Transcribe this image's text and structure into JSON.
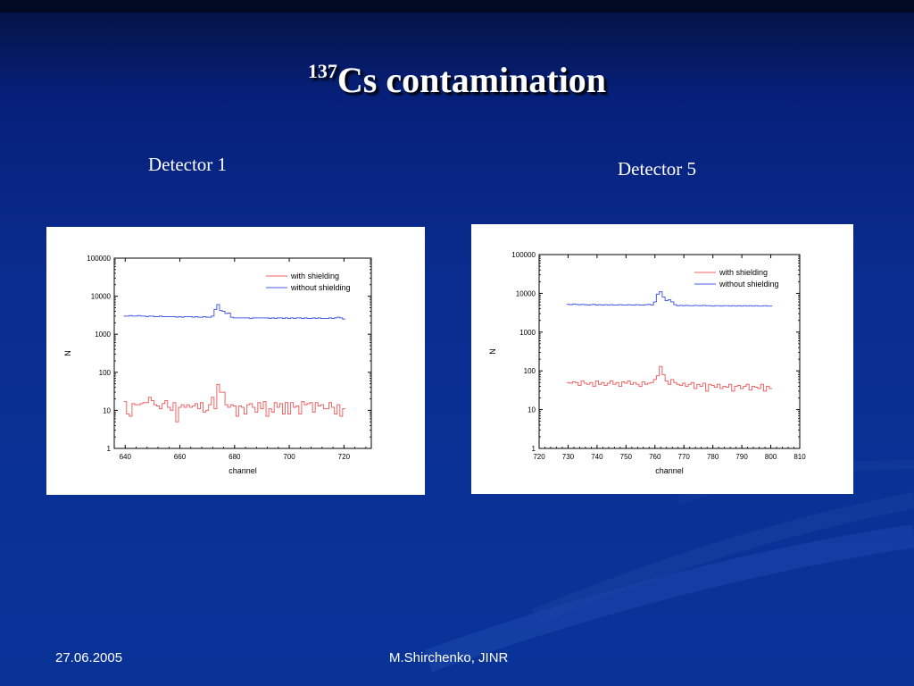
{
  "slide": {
    "title_sup": "137",
    "title_main": "Cs contamination",
    "footer_date": "27.06.2005",
    "footer_author": "M.Shirchenko, JINR"
  },
  "detectors": [
    {
      "label": "Detector 1"
    },
    {
      "label": "Detector 5"
    }
  ],
  "chart_data": [
    {
      "type": "line",
      "step": true,
      "xlabel": "channel",
      "ylabel": "N",
      "xlim": [
        636,
        730
      ],
      "ylim": [
        1,
        100000
      ],
      "y_scale": "log",
      "x_ticks": [
        640,
        660,
        680,
        700,
        720
      ],
      "y_ticks": [
        1,
        10,
        100,
        1000,
        10000,
        100000
      ],
      "y_tick_labels": [
        "1",
        "10",
        "100",
        "1000",
        "10000",
        "100000"
      ],
      "legend_position": "top-right",
      "x": [
        640,
        641,
        642,
        643,
        644,
        645,
        646,
        647,
        648,
        649,
        650,
        651,
        652,
        653,
        654,
        655,
        656,
        657,
        658,
        659,
        660,
        661,
        662,
        663,
        664,
        665,
        666,
        667,
        668,
        669,
        670,
        671,
        672,
        673,
        674,
        675,
        676,
        677,
        678,
        679,
        680,
        681,
        682,
        683,
        684,
        685,
        686,
        687,
        688,
        689,
        690,
        691,
        692,
        693,
        694,
        695,
        696,
        697,
        698,
        699,
        700,
        701,
        702,
        703,
        704,
        705,
        706,
        707,
        708,
        709,
        710,
        711,
        712,
        713,
        714,
        715,
        716,
        717,
        718,
        719,
        720
      ],
      "series": [
        {
          "name": "with shielding",
          "color": "#ee6666",
          "values": [
            17,
            8,
            7,
            15,
            14,
            14,
            15,
            16,
            16,
            22,
            18,
            14,
            13,
            11,
            15,
            18,
            12,
            10,
            16,
            5,
            12,
            14,
            12,
            14,
            12,
            13,
            15,
            11,
            16,
            9,
            10,
            14,
            22,
            11,
            48,
            30,
            30,
            14,
            12,
            14,
            13,
            7,
            13,
            12,
            8,
            14,
            15,
            12,
            9,
            16,
            11,
            17,
            7,
            11,
            9,
            16,
            12,
            15,
            8,
            16,
            8,
            16,
            12,
            13,
            8,
            17,
            14,
            15,
            16,
            9,
            16,
            13,
            14,
            11,
            11,
            16,
            12,
            8,
            14,
            7,
            11
          ]
        },
        {
          "name": "without shielding",
          "color": "#4a5ee8",
          "values": [
            3000,
            3000,
            3100,
            3000,
            3000,
            3100,
            3000,
            3000,
            2900,
            3000,
            3000,
            2900,
            2900,
            3000,
            2900,
            2900,
            2900,
            2900,
            2900,
            2800,
            2900,
            2800,
            2900,
            2900,
            2900,
            2800,
            2900,
            2800,
            2800,
            2900,
            2800,
            2800,
            3000,
            4500,
            6000,
            4200,
            4000,
            3500,
            3600,
            2800,
            2700,
            2700,
            2700,
            2700,
            2700,
            2700,
            2600,
            2700,
            2700,
            2700,
            2700,
            2700,
            2700,
            2600,
            2700,
            2600,
            2700,
            2700,
            2600,
            2700,
            2600,
            2700,
            2600,
            2700,
            2700,
            2600,
            2700,
            2600,
            2600,
            2700,
            2600,
            2700,
            2600,
            2600,
            2600,
            2700,
            2600,
            2700,
            2800,
            2700,
            2500
          ]
        }
      ]
    },
    {
      "type": "line",
      "step": true,
      "xlabel": "channel",
      "ylabel": "N",
      "xlim": [
        720,
        810
      ],
      "ylim": [
        1,
        100000
      ],
      "y_scale": "log",
      "x_ticks": [
        720,
        730,
        740,
        750,
        760,
        770,
        780,
        790,
        800,
        810
      ],
      "y_ticks": [
        1,
        10,
        100,
        1000,
        10000,
        100000
      ],
      "y_tick_labels": [
        "1",
        "10",
        "100",
        "1000",
        "10000",
        "100000"
      ],
      "legend_position": "top-right",
      "x": [
        730,
        731,
        732,
        733,
        734,
        735,
        736,
        737,
        738,
        739,
        740,
        741,
        742,
        743,
        744,
        745,
        746,
        747,
        748,
        749,
        750,
        751,
        752,
        753,
        754,
        755,
        756,
        757,
        758,
        759,
        760,
        761,
        762,
        763,
        764,
        765,
        766,
        767,
        768,
        769,
        770,
        771,
        772,
        773,
        774,
        775,
        776,
        777,
        778,
        779,
        780,
        781,
        782,
        783,
        784,
        785,
        786,
        787,
        788,
        789,
        790,
        791,
        792,
        793,
        794,
        795,
        796,
        797,
        798,
        799,
        800
      ],
      "series": [
        {
          "name": "with shielding",
          "color": "#ee6666",
          "values": [
            50,
            48,
            52,
            50,
            42,
            55,
            48,
            45,
            50,
            40,
            55,
            45,
            50,
            42,
            48,
            55,
            45,
            50,
            40,
            52,
            48,
            55,
            45,
            50,
            45,
            40,
            52,
            45,
            48,
            50,
            60,
            75,
            130,
            80,
            55,
            45,
            60,
            50,
            45,
            42,
            48,
            40,
            45,
            50,
            35,
            45,
            40,
            48,
            30,
            45,
            42,
            38,
            45,
            35,
            40,
            38,
            45,
            30,
            40,
            42,
            35,
            40,
            45,
            32,
            40,
            38,
            35,
            45,
            30,
            40,
            35
          ]
        },
        {
          "name": "without shielding",
          "color": "#4a5ee8",
          "values": [
            5200,
            5100,
            5300,
            5200,
            5100,
            5200,
            5100,
            5000,
            5100,
            5200,
            5000,
            5100,
            5000,
            5100,
            5000,
            5100,
            5000,
            5000,
            5100,
            5000,
            5000,
            5100,
            5000,
            5000,
            5100,
            5000,
            5000,
            5100,
            5200,
            5000,
            6000,
            9500,
            11000,
            8000,
            6500,
            6800,
            6000,
            5100,
            4800,
            4900,
            4800,
            4900,
            4800,
            4800,
            4900,
            4800,
            4800,
            4900,
            4800,
            4800,
            4700,
            4800,
            4800,
            4700,
            4800,
            4800,
            4700,
            4800,
            4700,
            4800,
            4700,
            4800,
            4700,
            4800,
            4700,
            4800,
            4700,
            4700,
            4800,
            4700,
            4700
          ]
        }
      ]
    }
  ]
}
